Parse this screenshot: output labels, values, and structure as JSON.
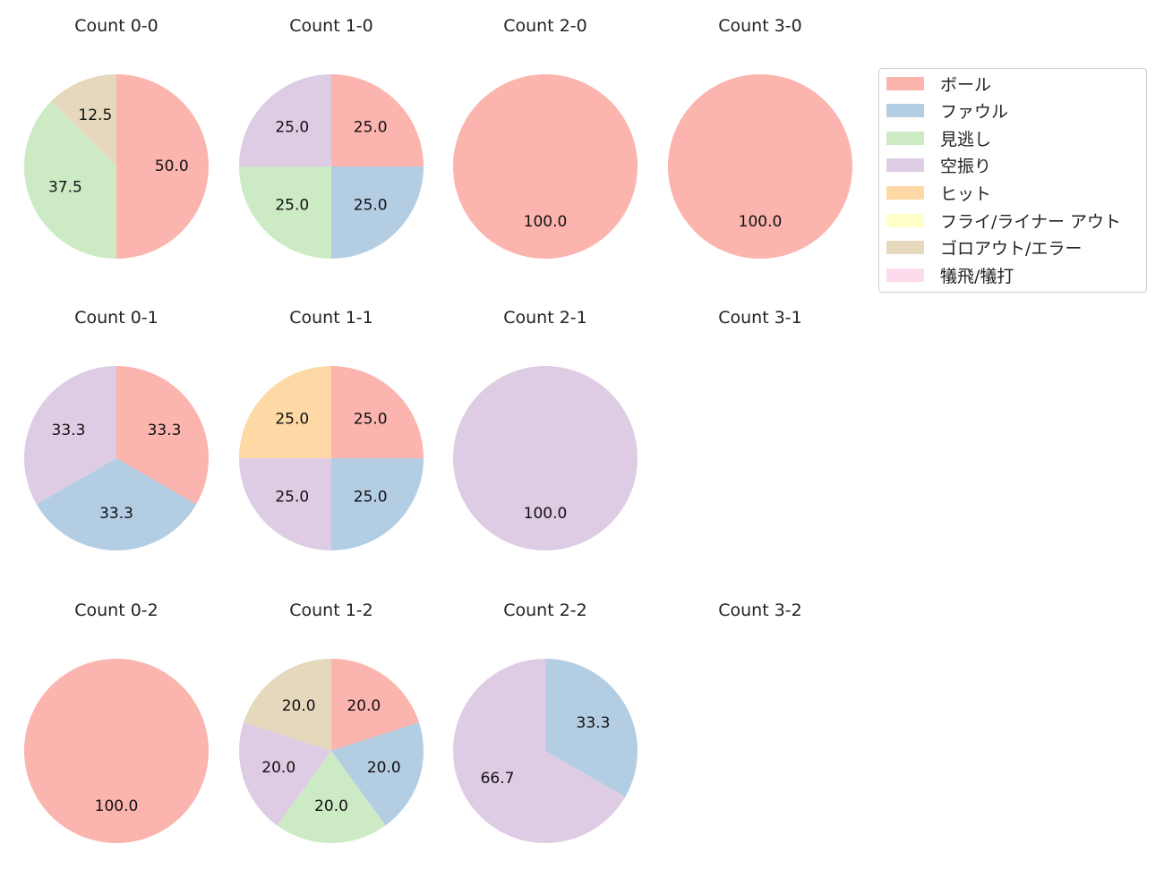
{
  "chart_data": {
    "type": "pie",
    "categories": [
      "ボール",
      "ファウル",
      "見逃し",
      "空振り",
      "ヒット",
      "フライ/ライナー アウト",
      "ゴロアウト/エラー",
      "犠飛/犠打"
    ],
    "colors": [
      "#fbb4ae",
      "#b3cde3",
      "#ccebc5",
      "#decbe4",
      "#fed9a6",
      "#ffffcc",
      "#e5d8bd",
      "#fddaec"
    ],
    "legend_placement": "top-right",
    "start": "top",
    "direction": "clockwise",
    "pies": [
      {
        "title": "Count 0-0",
        "values": [
          50,
          0,
          37.5,
          0,
          0,
          0,
          12.5,
          0
        ]
      },
      {
        "title": "Count 1-0",
        "values": [
          25,
          25,
          25,
          25,
          0,
          0,
          0,
          0
        ]
      },
      {
        "title": "Count 2-0",
        "values": [
          100,
          0,
          0,
          0,
          0,
          0,
          0,
          0
        ]
      },
      {
        "title": "Count 3-0",
        "values": [
          100,
          0,
          0,
          0,
          0,
          0,
          0,
          0
        ]
      },
      {
        "title": "Count 0-1",
        "values": [
          33.3,
          33.3,
          0,
          33.3,
          0,
          0,
          0,
          0
        ]
      },
      {
        "title": "Count 1-1",
        "values": [
          25,
          25,
          0,
          25,
          25,
          0,
          0,
          0
        ]
      },
      {
        "title": "Count 2-1",
        "values": [
          0,
          0,
          0,
          100,
          0,
          0,
          0,
          0
        ]
      },
      {
        "title": "Count 3-1",
        "values": []
      },
      {
        "title": "Count 0-2",
        "values": [
          100,
          0,
          0,
          0,
          0,
          0,
          0,
          0
        ]
      },
      {
        "title": "Count 1-2",
        "values": [
          20,
          20,
          20,
          20,
          0,
          0,
          20,
          0
        ]
      },
      {
        "title": "Count 2-2",
        "values": [
          0,
          33.3,
          0,
          66.7,
          0,
          0,
          0,
          0
        ]
      },
      {
        "title": "Count 3-2",
        "values": []
      }
    ]
  }
}
